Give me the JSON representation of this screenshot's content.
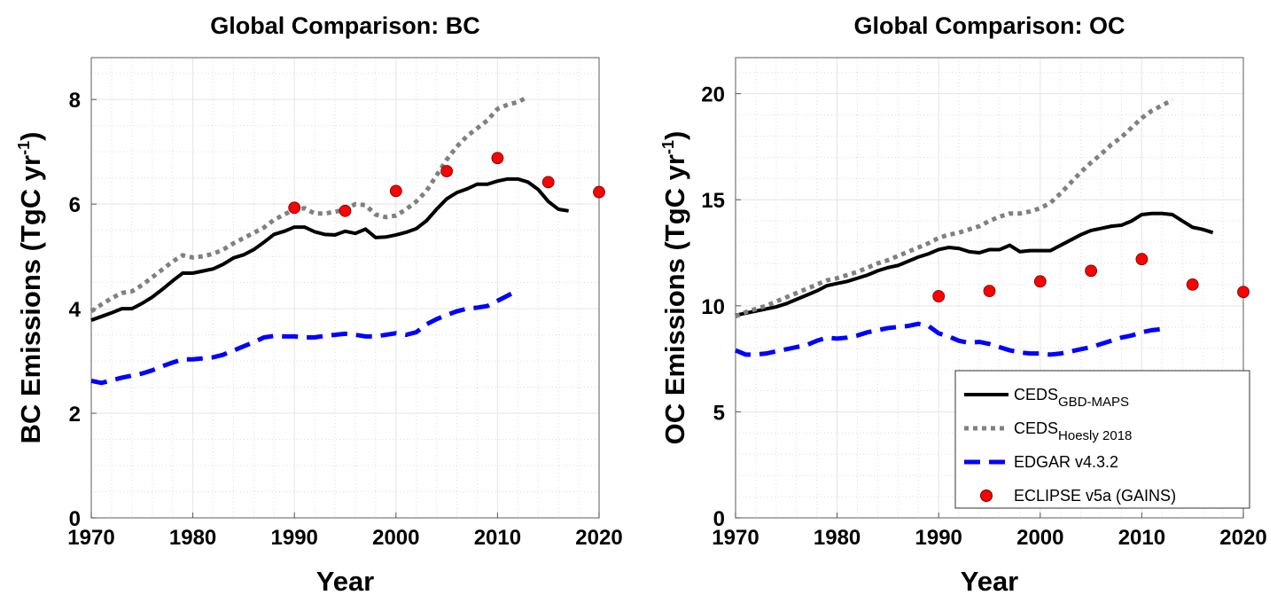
{
  "chart_data": [
    {
      "type": "line",
      "title": "Global Comparison: BC",
      "xlabel": "Year",
      "ylabel": {
        "text": "BC  Emissions (TgC yr",
        "sup": "-1",
        "close": ")"
      },
      "xlim": [
        1970,
        2020
      ],
      "ylim": [
        0,
        8.8
      ],
      "xticks": [
        1970,
        1980,
        1990,
        2000,
        2010,
        2020
      ],
      "yticks": [
        0,
        2,
        4,
        6,
        8
      ],
      "grid": true,
      "yminor": 0.5,
      "series": [
        {
          "name": "CEDS GBD-MAPS",
          "style": "solid",
          "color": "#000000",
          "x0": 1970,
          "values": [
            3.78,
            3.85,
            3.92,
            4.0,
            4.0,
            4.1,
            4.22,
            4.37,
            4.53,
            4.68,
            4.68,
            4.72,
            4.76,
            4.85,
            4.97,
            5.03,
            5.13,
            5.27,
            5.42,
            5.48,
            5.56,
            5.56,
            5.47,
            5.42,
            5.41,
            5.48,
            5.44,
            5.52,
            5.36,
            5.37,
            5.41,
            5.46,
            5.53,
            5.68,
            5.9,
            6.1,
            6.22,
            6.29,
            6.38,
            6.38,
            6.44,
            6.48,
            6.48,
            6.42,
            6.28,
            6.05,
            5.9,
            5.87
          ]
        },
        {
          "name": "CEDS Hoesly 2018",
          "style": "dotted",
          "color": "#808080",
          "x0": 1970,
          "values": [
            3.95,
            4.08,
            4.2,
            4.3,
            4.33,
            4.45,
            4.6,
            4.75,
            4.9,
            5.02,
            4.98,
            5.0,
            5.05,
            5.13,
            5.25,
            5.35,
            5.45,
            5.55,
            5.7,
            5.8,
            5.9,
            5.92,
            5.82,
            5.82,
            5.85,
            5.9,
            6.0,
            5.98,
            5.8,
            5.75,
            5.78,
            5.9,
            6.05,
            6.25,
            6.55,
            6.85,
            7.1,
            7.3,
            7.45,
            7.6,
            7.82,
            7.9,
            7.95,
            8.05
          ]
        },
        {
          "name": "EDGAR v4.3.2",
          "style": "dashed",
          "color": "#0000ff",
          "x0": 1970,
          "values": [
            2.62,
            2.58,
            2.63,
            2.68,
            2.72,
            2.76,
            2.82,
            2.9,
            2.97,
            3.03,
            3.03,
            3.05,
            3.07,
            3.12,
            3.2,
            3.28,
            3.36,
            3.45,
            3.48,
            3.47,
            3.47,
            3.45,
            3.45,
            3.48,
            3.5,
            3.52,
            3.5,
            3.47,
            3.47,
            3.5,
            3.53,
            3.5,
            3.55,
            3.7,
            3.8,
            3.88,
            3.95,
            4.0,
            4.02,
            4.05,
            4.15,
            4.25,
            4.35
          ]
        },
        {
          "name": "ECLIPSE v5a (GAINS)",
          "style": "marker",
          "color": "#ff0000",
          "x": [
            1990,
            1995,
            2000,
            2005,
            2010,
            2015,
            2020
          ],
          "values": [
            5.93,
            5.87,
            6.25,
            6.63,
            6.88,
            6.42,
            6.23
          ]
        }
      ]
    },
    {
      "type": "line",
      "title": "Global Comparison: OC",
      "xlabel": "Year",
      "ylabel": {
        "text": "OC  Emissions (TgC yr",
        "sup": "-1",
        "close": ")"
      },
      "xlim": [
        1970,
        2020
      ],
      "ylim": [
        0,
        21.7
      ],
      "xticks": [
        1970,
        1980,
        1990,
        2000,
        2010,
        2020
      ],
      "yticks": [
        0,
        5,
        10,
        15,
        20
      ],
      "grid": true,
      "yminor": 1,
      "legend": {
        "position": "bottom-right",
        "entries": [
          {
            "main": "CEDS",
            "sub": "GBD-MAPS"
          },
          {
            "main": "CEDS",
            "sub": "Hoesly 2018"
          },
          {
            "main": "EDGAR v4.3.2",
            "sub": ""
          },
          {
            "main": "ECLIPSE v5a (GAINS)",
            "sub": ""
          }
        ]
      },
      "series": [
        {
          "name": "CEDS GBD-MAPS",
          "style": "solid",
          "color": "#000000",
          "x0": 1970,
          "values": [
            9.55,
            9.65,
            9.75,
            9.85,
            9.95,
            10.1,
            10.3,
            10.5,
            10.7,
            10.95,
            11.05,
            11.15,
            11.3,
            11.45,
            11.65,
            11.8,
            11.9,
            12.1,
            12.3,
            12.45,
            12.65,
            12.75,
            12.7,
            12.55,
            12.5,
            12.65,
            12.65,
            12.85,
            12.55,
            12.6,
            12.6,
            12.6,
            12.85,
            13.1,
            13.35,
            13.55,
            13.65,
            13.75,
            13.8,
            14.0,
            14.3,
            14.35,
            14.35,
            14.3,
            14.0,
            13.7,
            13.6,
            13.45
          ]
        },
        {
          "name": "CEDS Hoesly 2018",
          "style": "dotted",
          "color": "#808080",
          "x0": 1970,
          "values": [
            9.5,
            9.7,
            9.85,
            10.0,
            10.2,
            10.4,
            10.6,
            10.8,
            11.0,
            11.2,
            11.3,
            11.45,
            11.6,
            11.8,
            12.0,
            12.15,
            12.35,
            12.55,
            12.75,
            12.95,
            13.2,
            13.35,
            13.45,
            13.6,
            13.75,
            14.0,
            14.2,
            14.35,
            14.35,
            14.45,
            14.6,
            14.85,
            15.3,
            15.8,
            16.3,
            16.75,
            17.15,
            17.6,
            17.95,
            18.4,
            18.85,
            19.2,
            19.45,
            19.7
          ]
        },
        {
          "name": "EDGAR v4.3.2",
          "style": "dashed",
          "color": "#0000ff",
          "x0": 1970,
          "values": [
            7.9,
            7.7,
            7.7,
            7.75,
            7.85,
            7.95,
            8.05,
            8.15,
            8.35,
            8.5,
            8.45,
            8.5,
            8.6,
            8.75,
            8.85,
            8.95,
            9.0,
            9.05,
            9.15,
            9.05,
            8.7,
            8.55,
            8.35,
            8.25,
            8.3,
            8.2,
            8.05,
            7.9,
            7.8,
            7.75,
            7.75,
            7.7,
            7.75,
            7.85,
            7.95,
            8.05,
            8.2,
            8.35,
            8.5,
            8.6,
            8.75,
            8.85,
            8.9
          ]
        },
        {
          "name": "ECLIPSE v5a (GAINS)",
          "style": "marker",
          "color": "#ff0000",
          "x": [
            1990,
            1995,
            2000,
            2005,
            2010,
            2015,
            2020
          ],
          "values": [
            10.45,
            10.7,
            11.15,
            11.65,
            12.2,
            11.0,
            10.65
          ]
        }
      ]
    }
  ]
}
